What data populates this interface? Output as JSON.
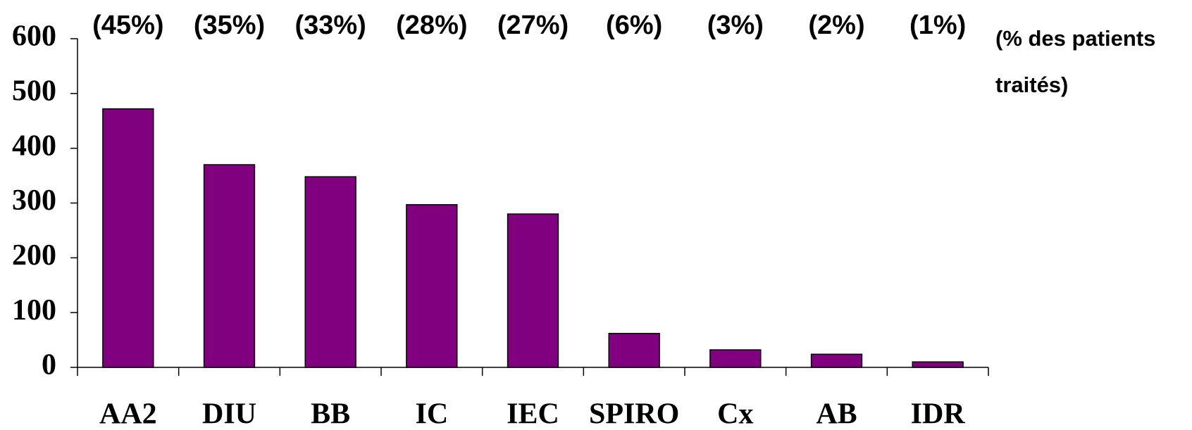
{
  "chart_data": {
    "type": "bar",
    "categories": [
      "AA2",
      "DIU",
      "BB",
      "IC",
      "IEC",
      "SPIRO",
      "Cx",
      "AB",
      "IDR"
    ],
    "values": [
      472,
      370,
      348,
      297,
      280,
      62,
      32,
      24,
      10
    ],
    "percent_labels": [
      "(45%)",
      "(35%)",
      "(33%)",
      "(28%)",
      "(27%)",
      "(6%)",
      "(3%)",
      "(2%)",
      "(1%)"
    ],
    "note": [
      "(% des patients",
      "traités)"
    ],
    "color": "#800080",
    "ylim": [
      0,
      600
    ],
    "yticks": [
      0,
      100,
      200,
      300,
      400,
      500,
      600
    ],
    "grid": false
  }
}
